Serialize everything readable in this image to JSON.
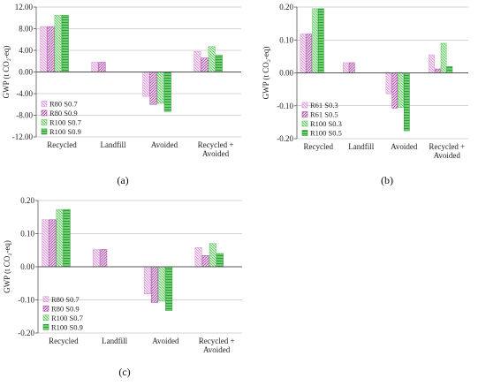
{
  "colors": {
    "s1": "#d98fd6",
    "s2": "#a64aa3",
    "s3": "#5cc85c",
    "s4": "#2f9a3a",
    "axis": "#555555",
    "grid": "#aaaaaa"
  },
  "chart_data": [
    {
      "type": "bar",
      "panel_label": "(a)",
      "ylabel": "GWP (t CO₂-eq)",
      "ylim": [
        -12,
        12
      ],
      "yticks": [
        12,
        8,
        4,
        0,
        -4,
        -8,
        -12
      ],
      "ytick_labels": [
        "12.00",
        "8.00",
        "4.00",
        "0.00",
        "-4.00",
        "-8.00",
        "-12.00"
      ],
      "grid": true,
      "legend_position": "bottom-left",
      "categories": [
        "Recycled",
        "Landfill",
        "Avoided",
        "Recycled +\nAvoided"
      ],
      "series": [
        {
          "name": "R80 S0.7",
          "values": [
            8.4,
            1.8,
            -4.5,
            3.8
          ]
        },
        {
          "name": "R80 S0.9",
          "values": [
            8.4,
            1.8,
            -6.0,
            2.6
          ]
        },
        {
          "name": "R100 S0.7",
          "values": [
            10.5,
            null,
            -5.8,
            4.7
          ]
        },
        {
          "name": "R100 S0.9",
          "values": [
            10.5,
            null,
            -7.3,
            3.1
          ]
        }
      ]
    },
    {
      "type": "bar",
      "panel_label": "(b)",
      "ylabel": "GWP (t CO₂-eq)",
      "ylim": [
        -0.2,
        0.2
      ],
      "yticks": [
        0.2,
        0.1,
        0,
        -0.1,
        -0.2
      ],
      "ytick_labels": [
        "0.20",
        "0.10",
        "0.00",
        "-0.10",
        "-0.20"
      ],
      "grid": true,
      "legend_position": "bottom-left",
      "categories": [
        "Recycled",
        "Landfill",
        "Avoided",
        "Recycled +\nAvoided"
      ],
      "series": [
        {
          "name": "R61 S0.3",
          "values": [
            0.118,
            0.031,
            -0.064,
            0.055
          ]
        },
        {
          "name": "R61 S0.5",
          "values": [
            0.118,
            0.031,
            -0.107,
            0.012
          ]
        },
        {
          "name": "R100 S0.3",
          "values": [
            0.195,
            null,
            -0.105,
            0.09
          ]
        },
        {
          "name": "R100 S0.5",
          "values": [
            0.195,
            null,
            -0.176,
            0.019
          ]
        }
      ]
    },
    {
      "type": "bar",
      "panel_label": "(c)",
      "ylabel": "GWP (t CO₂-eq)",
      "ylim": [
        -0.2,
        0.2
      ],
      "yticks": [
        0.2,
        0.1,
        0,
        -0.1,
        -0.2
      ],
      "ytick_labels": [
        "0.20",
        "0.10",
        "0.00",
        "-0.10",
        "-0.20"
      ],
      "grid": true,
      "legend_position": "bottom-left",
      "categories": [
        "Recycled",
        "Landfill",
        "Avoided",
        "Recycled +\nAvoided"
      ],
      "series": [
        {
          "name": "R80 S0.7",
          "values": [
            0.142,
            0.052,
            -0.082,
            0.058
          ]
        },
        {
          "name": "R80 S0.9",
          "values": [
            0.142,
            0.052,
            -0.108,
            0.034
          ]
        },
        {
          "name": "R100 S0.7",
          "values": [
            0.173,
            null,
            -0.104,
            0.07
          ]
        },
        {
          "name": "R100 S0.9",
          "values": [
            0.173,
            null,
            -0.132,
            0.04
          ]
        }
      ]
    }
  ]
}
